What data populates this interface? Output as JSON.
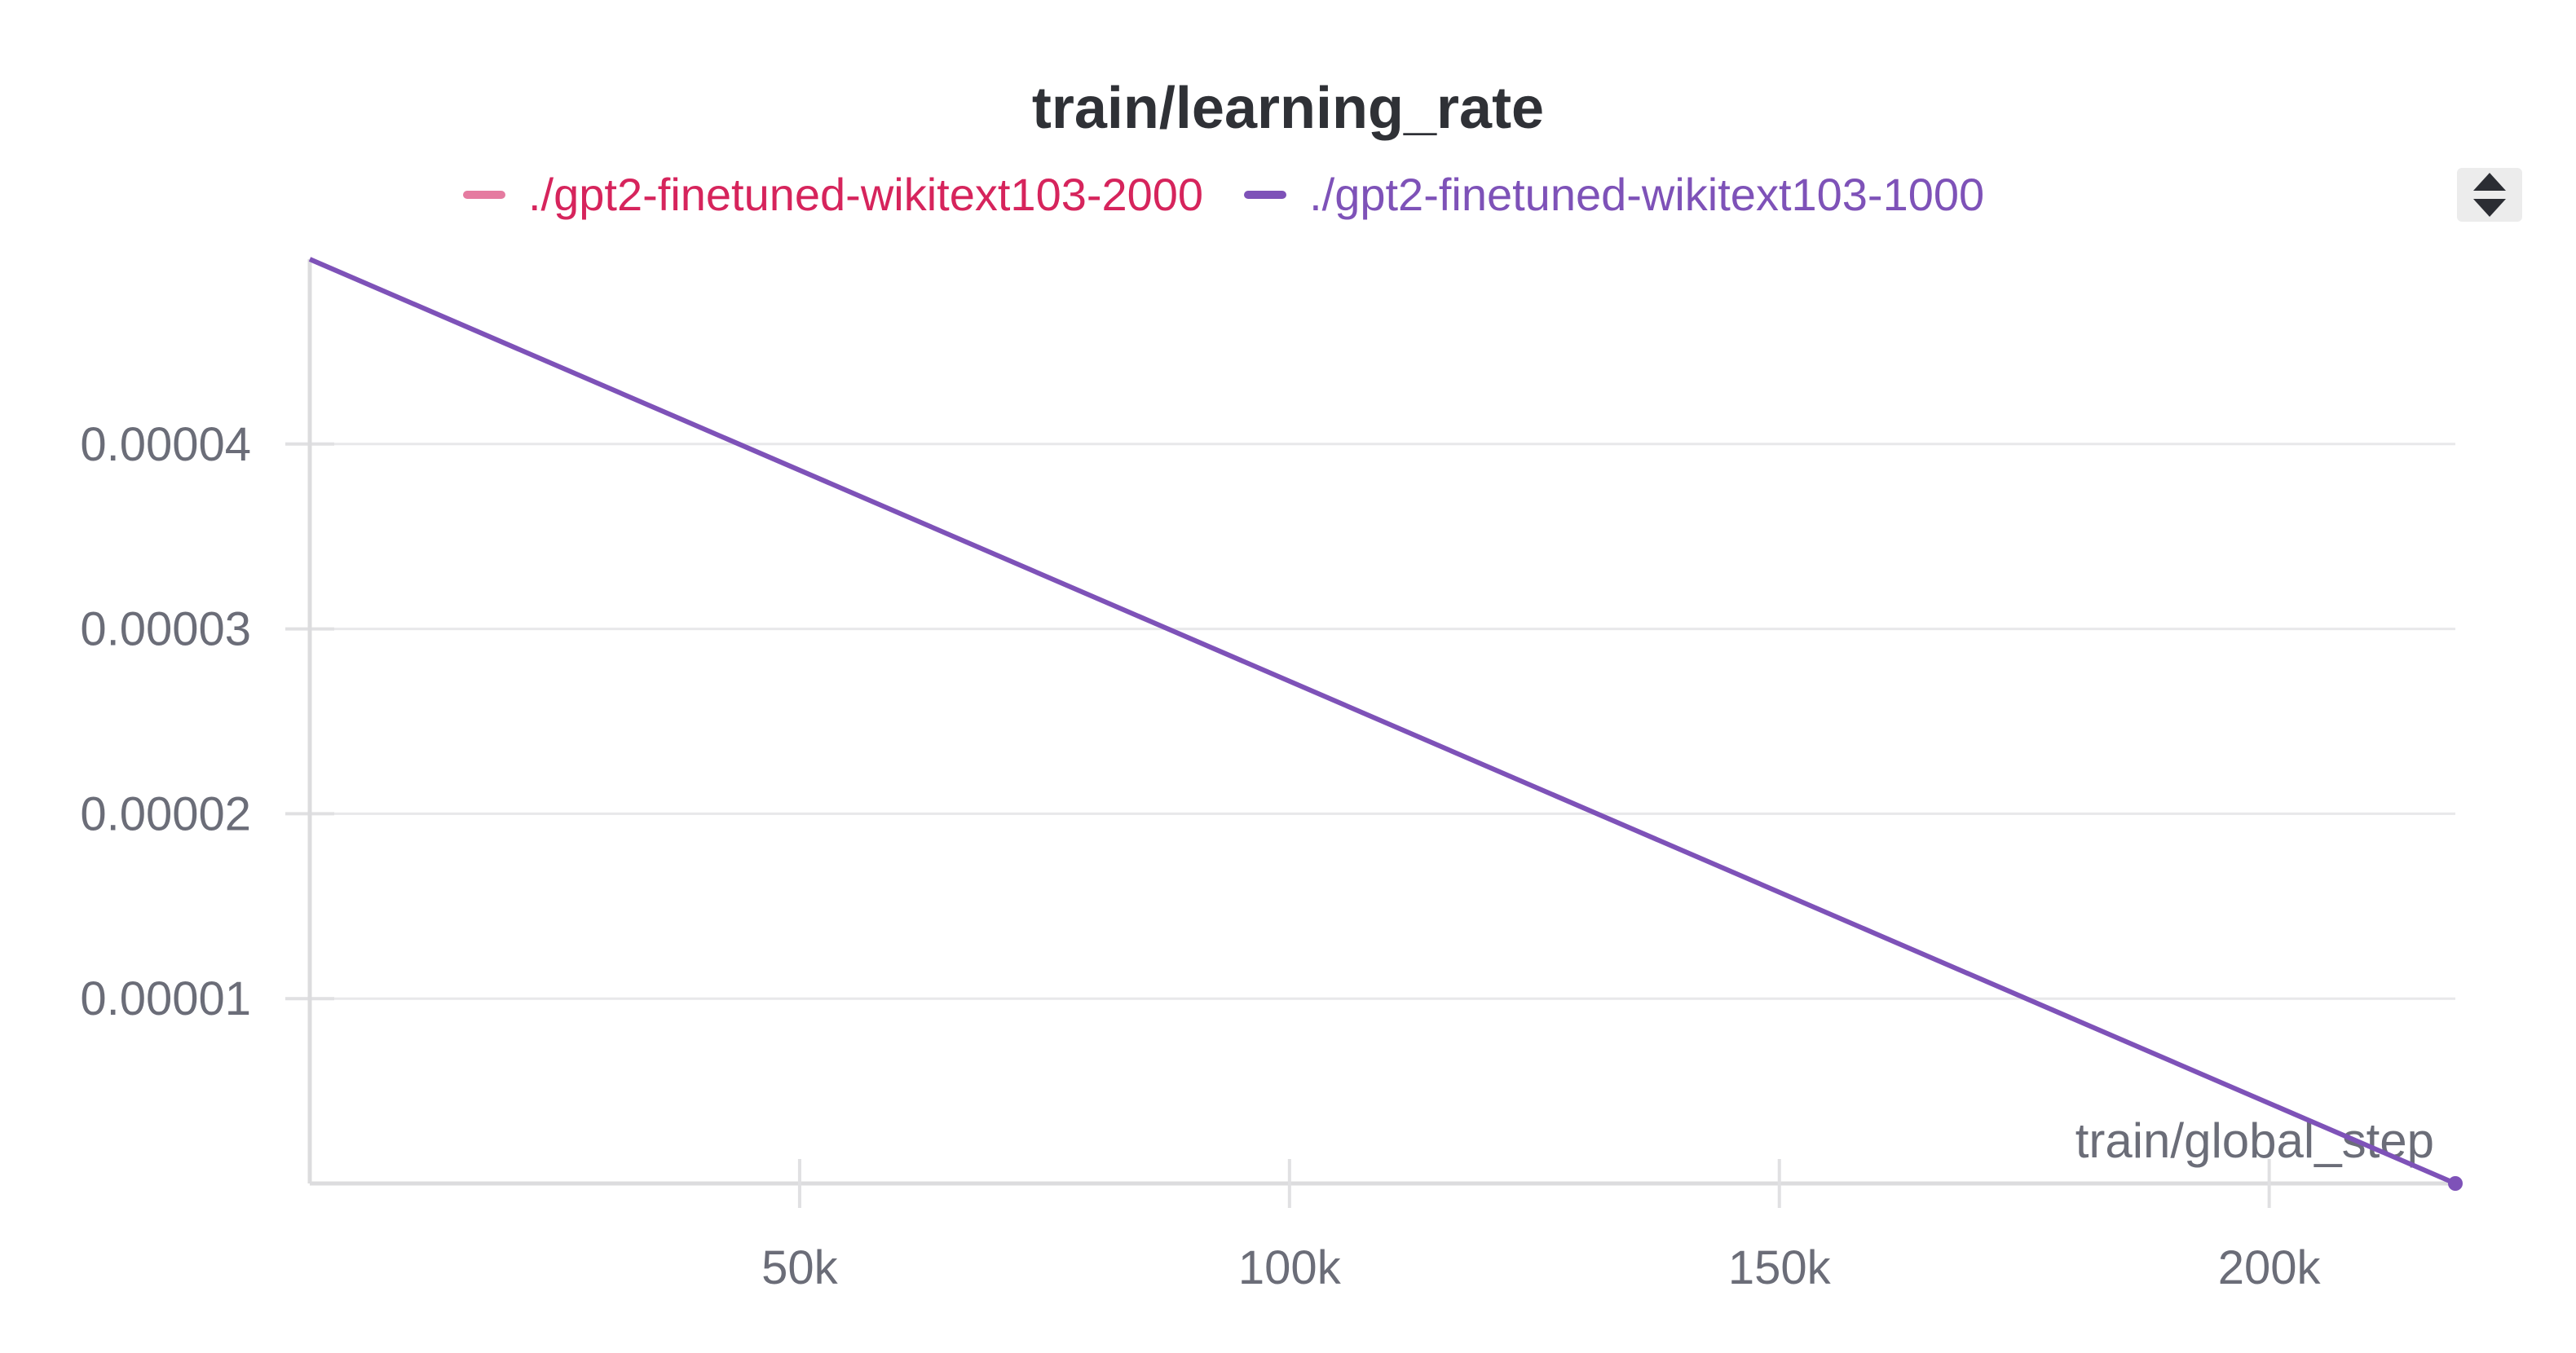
{
  "chart_data": {
    "type": "line",
    "title": "train/learning_rate",
    "xlabel": "train/global_step",
    "ylabel": "",
    "xlim": [
      0,
      219000
    ],
    "ylim": [
      0,
      5e-05
    ],
    "x_ticks": [
      50000,
      100000,
      150000,
      200000
    ],
    "x_tick_labels": [
      "50k",
      "100k",
      "150k",
      "200k"
    ],
    "y_ticks": [
      1e-05,
      2e-05,
      3e-05,
      4e-05
    ],
    "y_tick_labels": [
      "0.00001",
      "0.00002",
      "0.00003",
      "0.00004"
    ],
    "grid": true,
    "legend_position": "top",
    "series": [
      {
        "name": "./gpt2-finetuned-wikitext103-2000",
        "color": "#e57ba0",
        "label_color": "#d6245c",
        "x": [],
        "y": []
      },
      {
        "name": "./gpt2-finetuned-wikitext103-1000",
        "color": "#7e52b8",
        "label_color": "#7e52b8",
        "x": [
          0,
          219000
        ],
        "y": [
          5e-05,
          0
        ]
      }
    ]
  },
  "controls": {
    "scroll_icon": "chevron-up-down-icon"
  }
}
